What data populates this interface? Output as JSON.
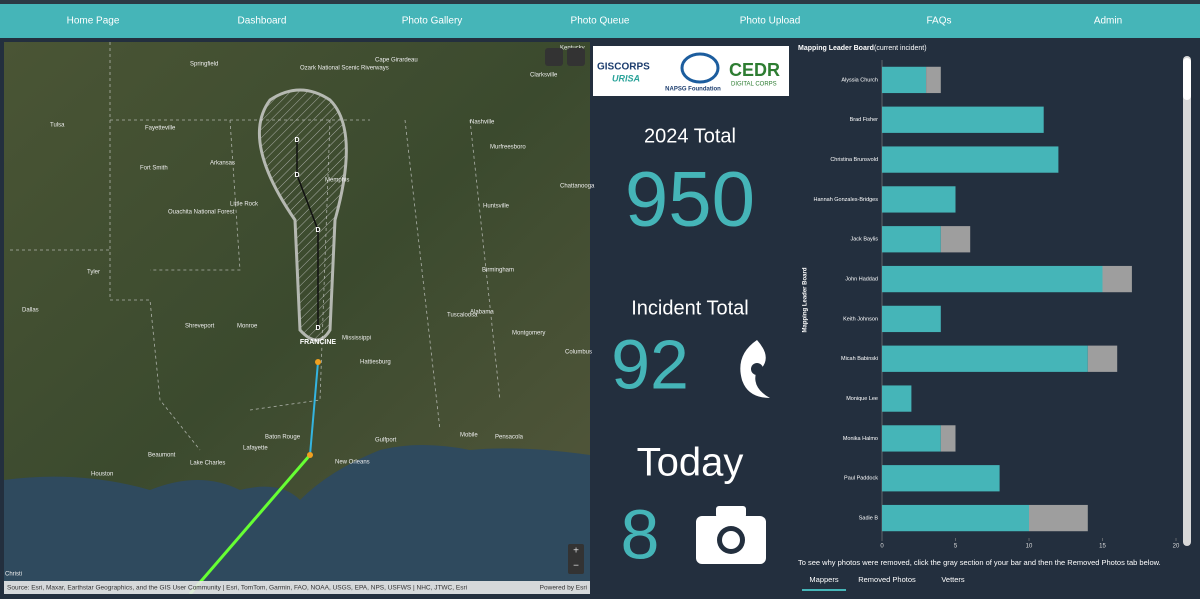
{
  "nav": [
    "Home Page",
    "Dashboard",
    "Photo Gallery",
    "Photo Queue",
    "Photo Upload",
    "FAQs",
    "Admin"
  ],
  "map": {
    "labels": [
      "Springfield",
      "Kentucky",
      "Cape Girardeau",
      "Ozark National Scenic Riverways",
      "Clarksville",
      "Tulsa",
      "Nashville",
      "Fayetteville",
      "Murfreesboro",
      "Fort Smith",
      "Arkansas",
      "Memphis",
      "Chattanooga",
      "Little Rock",
      "Huntsville",
      "Ouachita National Forest",
      "Birmingham",
      "Shreveport",
      "Monroe",
      "Tuscaloosa",
      "Alabama",
      "Montgomery",
      "Mississippi",
      "Columbus",
      "Dallas",
      "Tyler",
      "Hattiesburg",
      "Mobile",
      "Pensacola",
      "Baton Rouge",
      "Lafayette",
      "New Orleans",
      "Gulfport",
      "Beaumont",
      "Houston",
      "Lake Charles",
      "Christi"
    ],
    "storm": {
      "name": "FRANCINE",
      "markers": [
        "D",
        "D",
        "D",
        "D"
      ]
    },
    "attribution": "Source: Esri, Maxar, Earthstar Geographics, and the GIS User Community | Esri, TomTom, Garmin, FAO, NOAA, USGS, EPA, NPS, USFWS | NHC, JTWC, Esri",
    "powered": "Powered by Esri"
  },
  "logos": {
    "giscorps": "GISCORPS",
    "urisa": "URISA",
    "napsg": "NAPSG Foundation",
    "cedr": "CEDR",
    "cedr_sub": "DIGITAL CORPS"
  },
  "stats": [
    {
      "label": "2024 Total",
      "value": 950
    },
    {
      "label": "Incident Total",
      "value": 92
    },
    {
      "label": "Today",
      "value": 8
    }
  ],
  "leaderboard": {
    "type": "bar",
    "orientation": "horizontal",
    "stacked": true,
    "title": "Mapping Leader Board",
    "subtitle": "(current incident)",
    "y_label": "Mapping Leader Board",
    "categories": [
      "Alyssia Church",
      "Brad Fisher",
      "Christina Brunsvold",
      "Hannah Gonzales-Bridges",
      "Jack Baylis",
      "John Haddad",
      "Keith Johnson",
      "Micah Babinski",
      "Monique Lee",
      "Monika Halmo",
      "Paul Paddock",
      "Sadie B"
    ],
    "series": [
      {
        "color": "#45b5b8",
        "values": [
          3,
          11,
          12,
          5,
          4,
          15,
          4,
          14,
          2,
          4,
          8,
          10
        ]
      },
      {
        "color": "#9e9e9e",
        "values": [
          1,
          0,
          0,
          0,
          2,
          2,
          0,
          2,
          0,
          1,
          0,
          4
        ]
      }
    ],
    "xlim": [
      0,
      20
    ],
    "xticks": [
      0,
      5,
      10,
      15,
      20
    ],
    "note": "To see why photos were removed, click the gray section of your bar and then the Removed Photos tab below.",
    "tabs": [
      "Mappers",
      "Removed Photos",
      "Vetters"
    ]
  }
}
